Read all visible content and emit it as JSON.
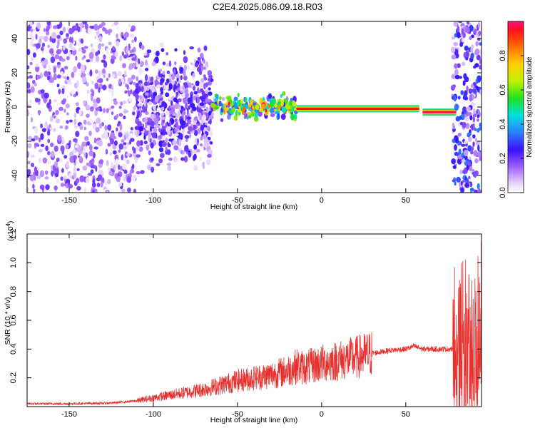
{
  "title": "C2E4.2025.086.09.18.R03",
  "chart_data": [
    {
      "type": "heatmap",
      "xlabel": "Height of straight line (km)",
      "ylabel": "Frequency (Hz)",
      "xlim": [
        -175,
        95
      ],
      "ylim": [
        -50,
        50
      ],
      "xticks": [
        -150,
        -100,
        -50,
        0,
        50
      ],
      "yticks": [
        -40,
        -20,
        0,
        20,
        40
      ],
      "colorbar": {
        "label": "Normalized spectral amplitude",
        "range": [
          0,
          1
        ],
        "ticks": [
          "0.0",
          "0.2",
          "0.4",
          "0.6",
          "0.8"
        ]
      },
      "features": [
        {
          "x_range": [
            -175,
            -110
          ],
          "freq_range": [
            -50,
            50
          ],
          "amplitude": 0.12
        },
        {
          "x_range": [
            -110,
            -65
          ],
          "freq_range": [
            -40,
            40
          ],
          "amplitude": 0.15
        },
        {
          "x_range": [
            -65,
            -15
          ],
          "freq_range": [
            -8,
            8
          ],
          "amplitude": 0.35
        },
        {
          "x_range": [
            -15,
            58
          ],
          "freq": -1,
          "amplitude": 0.95
        },
        {
          "x_range": [
            60,
            80
          ],
          "freq": -3,
          "amplitude": 0.97
        },
        {
          "x_range": [
            78,
            95
          ],
          "freq_range": [
            -50,
            50
          ],
          "amplitude": 0.2
        }
      ]
    },
    {
      "type": "line",
      "xlabel": "Height of straight line (km)",
      "ylabel": "SNR (10 * v/v)",
      "y_multiplier": "(x10",
      "y_multiplier_exp": "4",
      "y_multiplier_close": ")",
      "xlim": [
        -175,
        95
      ],
      "ylim": [
        0,
        1.2
      ],
      "xticks": [
        -150,
        -100,
        -50,
        0,
        50
      ],
      "yticks": [
        "0.2",
        "0.4",
        "0.6",
        "0.8",
        "1.0",
        "1.2"
      ],
      "series": [
        {
          "color": "#e8312f",
          "x": [
            -175,
            -150,
            -125,
            -110,
            -100,
            -90,
            -80,
            -70,
            -60,
            -50,
            -40,
            -30,
            -20,
            -15,
            -10,
            0,
            10,
            20,
            30,
            40,
            50,
            55,
            60,
            70,
            78,
            80,
            85,
            90,
            95
          ],
          "y": [
            0.02,
            0.02,
            0.025,
            0.04,
            0.06,
            0.08,
            0.1,
            0.12,
            0.15,
            0.18,
            0.2,
            0.22,
            0.25,
            0.28,
            0.27,
            0.3,
            0.32,
            0.34,
            0.37,
            0.39,
            0.4,
            0.42,
            0.4,
            0.4,
            0.4,
            0.55,
            0.5,
            0.45,
            0.6
          ]
        }
      ]
    }
  ]
}
